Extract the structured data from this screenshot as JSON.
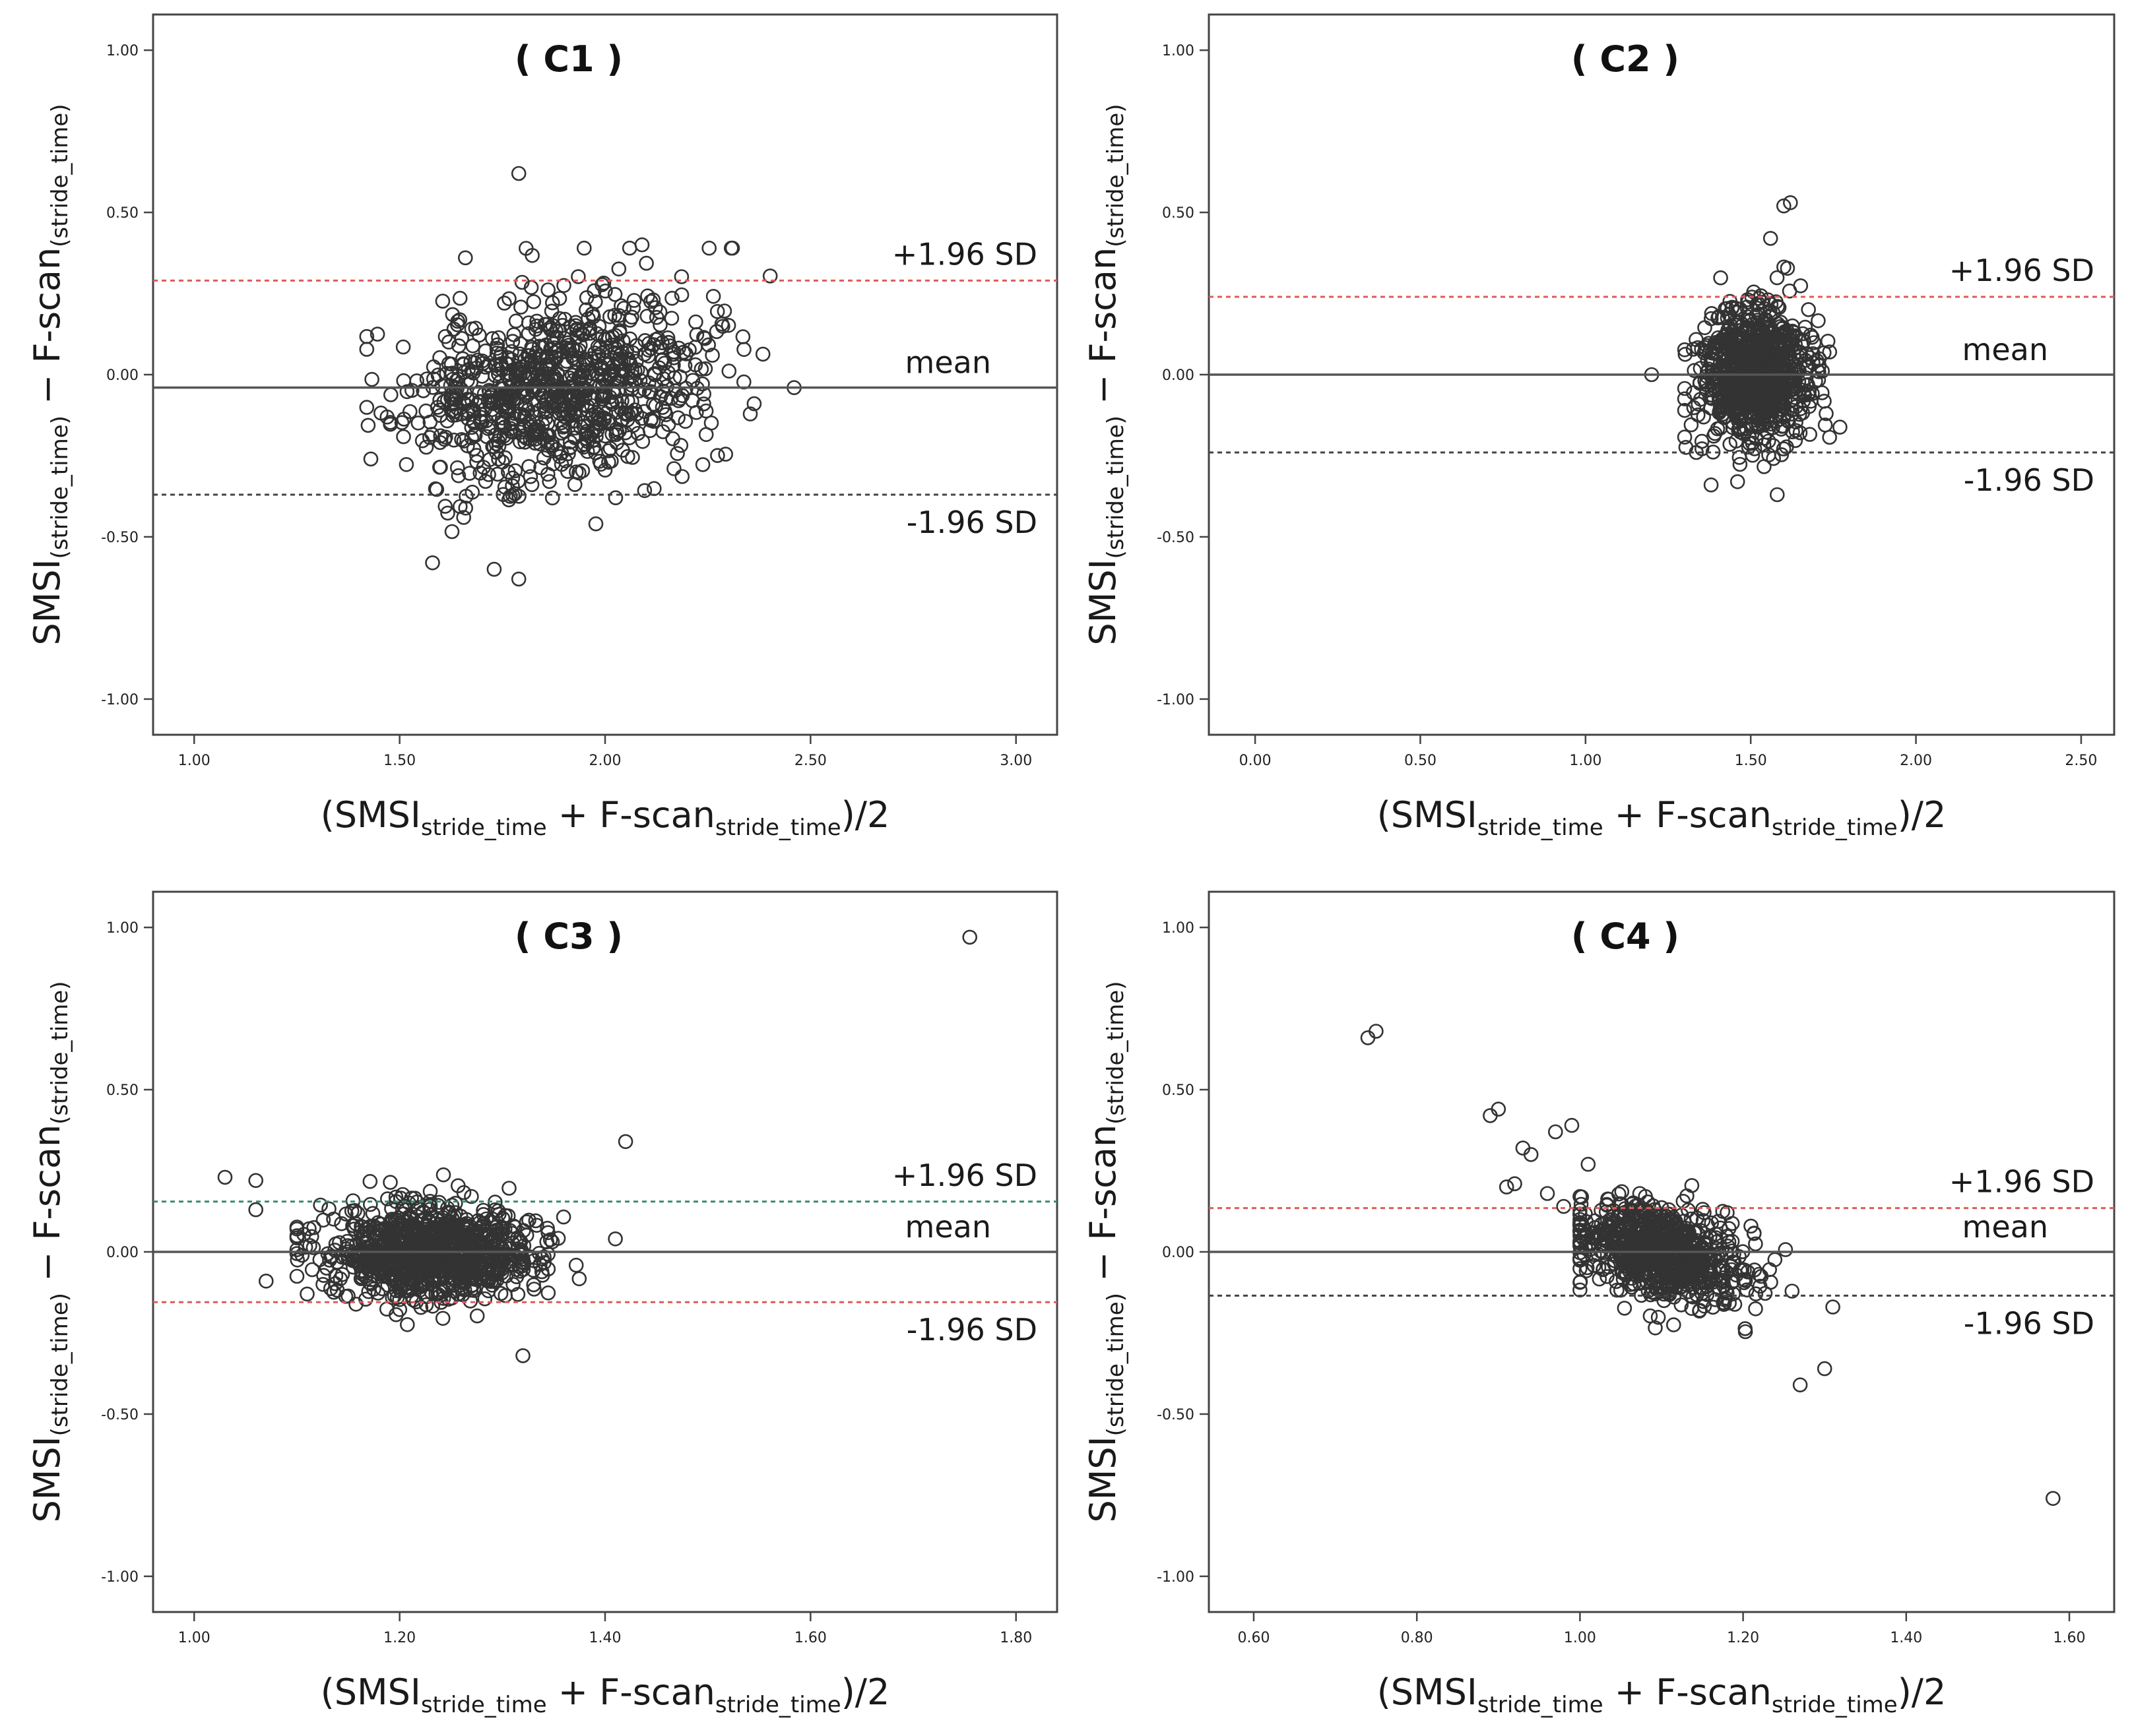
{
  "chart_data": [
    {
      "type": "scatter",
      "panel_title": "( C1 )",
      "ylabel": {
        "main": "SMSI",
        "sub1": "(stride_time)",
        "mid": " − F-scan",
        "sub2": "(stride_time)"
      },
      "xlabel": {
        "pre": "(SMSI",
        "sub1": "stride_time",
        "mid": " + F-scan",
        "sub2": "stride_time",
        "post": ")/2"
      },
      "xlim": [
        0.9,
        3.1
      ],
      "ylim": [
        -1.11,
        1.11
      ],
      "x_ticks": [
        1.0,
        1.5,
        2.0,
        2.5,
        3.0
      ],
      "x_tick_labels": [
        "1.00",
        "1.50",
        "2.00",
        "2.50",
        "3.00"
      ],
      "y_ticks": [
        1.0,
        0.5,
        0.0,
        -0.5,
        -1.0
      ],
      "y_tick_labels": [
        "1.00",
        "0.50",
        "0.00",
        "-0.50",
        "-1.00"
      ],
      "mean": -0.04,
      "upper_loa": 0.29,
      "lower_loa": -0.37,
      "upper_color": "#e05a5a",
      "lower_color": "#444444",
      "upper_label": "+1.96   SD",
      "mean_label": "mean",
      "lower_label": "-1.96   SD",
      "cloud": {
        "n": 900,
        "seed": 11,
        "x_center": 1.88,
        "x_sd": 0.18,
        "x_min": 1.42,
        "x_max": 2.48,
        "y_sd": 0.14,
        "slope": 0.18
      },
      "outliers": [
        [
          1.79,
          0.62
        ],
        [
          1.79,
          -0.63
        ],
        [
          1.66,
          0.36
        ],
        [
          2.09,
          0.4
        ],
        [
          2.31,
          0.39
        ],
        [
          2.46,
          -0.04
        ],
        [
          1.43,
          -0.26
        ],
        [
          1.58,
          -0.58
        ],
        [
          1.73,
          -0.6
        ]
      ]
    },
    {
      "type": "scatter",
      "panel_title": "( C2 )",
      "ylabel": {
        "main": "SMSI",
        "sub1": "(stride_time)",
        "mid": " − F-scan",
        "sub2": "(stride_time)"
      },
      "xlabel": {
        "pre": "(SMSI",
        "sub1": "stride_time",
        "mid": " + F-scan",
        "sub2": "stride_time",
        "post": ")/2"
      },
      "xlim": [
        -0.14,
        2.6
      ],
      "ylim": [
        -1.11,
        1.11
      ],
      "x_ticks": [
        0.0,
        0.5,
        1.0,
        1.5,
        2.0,
        2.5
      ],
      "x_tick_labels": [
        "0.00",
        "0.50",
        "1.00",
        "1.50",
        "2.00",
        "2.50"
      ],
      "y_ticks": [
        1.0,
        0.5,
        0.0,
        -0.5,
        -1.0
      ],
      "y_tick_labels": [
        "1.00",
        "0.50",
        "0.00",
        "-0.50",
        "-1.00"
      ],
      "mean": 0.0,
      "upper_loa": 0.24,
      "lower_loa": -0.24,
      "upper_color": "#e05a5a",
      "lower_color": "#444444",
      "upper_label": "+1.96   SD",
      "mean_label": "mean",
      "lower_label": "-1.96   SD",
      "cloud": {
        "n": 900,
        "seed": 23,
        "x_center": 1.51,
        "x_sd": 0.08,
        "x_min": 1.3,
        "x_max": 1.77,
        "y_sd": 0.1,
        "slope": 0
      },
      "outliers": [
        [
          1.2,
          0.0
        ],
        [
          1.6,
          0.52
        ],
        [
          1.62,
          0.53
        ],
        [
          1.56,
          0.42
        ],
        [
          1.58,
          -0.37
        ],
        [
          1.38,
          -0.34
        ],
        [
          1.46,
          -0.33
        ]
      ]
    },
    {
      "type": "scatter",
      "panel_title": "( C3 )",
      "ylabel": {
        "main": "SMSI",
        "sub1": "(stride_time)",
        "mid": " − F-scan",
        "sub2": "(stride_time)"
      },
      "xlabel": {
        "pre": "(SMSI",
        "sub1": "stride_time",
        "mid": " + F-scan",
        "sub2": "stride_time",
        "post": ")/2"
      },
      "xlim": [
        0.96,
        1.84
      ],
      "ylim": [
        -1.11,
        1.11
      ],
      "x_ticks": [
        1.0,
        1.2,
        1.4,
        1.6,
        1.8
      ],
      "x_tick_labels": [
        "1.00",
        "1.20",
        "1.40",
        "1.60",
        "1.80"
      ],
      "y_ticks": [
        1.0,
        0.5,
        0.0,
        -0.5,
        -1.0
      ],
      "y_tick_labels": [
        "1.00",
        "0.50",
        "0.00",
        "-0.50",
        "-1.00"
      ],
      "mean": 0.0,
      "upper_loa": 0.155,
      "lower_loa": -0.155,
      "upper_color": "#3a8a6a",
      "lower_color": "#e05a5a",
      "upper_label": "+1.96   SD",
      "mean_label": "mean",
      "lower_label": "-1.96   SD",
      "cloud": {
        "n": 1000,
        "seed": 37,
        "x_center": 1.23,
        "x_sd": 0.05,
        "x_min": 1.1,
        "x_max": 1.39,
        "y_sd": 0.07,
        "slope": 0
      },
      "outliers": [
        [
          1.755,
          0.97
        ],
        [
          1.42,
          0.34
        ],
        [
          1.03,
          0.23
        ],
        [
          1.06,
          0.22
        ],
        [
          1.06,
          0.13
        ],
        [
          1.07,
          -0.09
        ],
        [
          1.11,
          -0.13
        ],
        [
          1.41,
          0.04
        ],
        [
          1.32,
          -0.32
        ]
      ]
    },
    {
      "type": "scatter",
      "panel_title": "( C4 )",
      "ylabel": {
        "main": "SMSI",
        "sub1": "(stride_time)",
        "mid": " − F-scan",
        "sub2": "(stride_time)"
      },
      "xlabel": {
        "pre": "(SMSI",
        "sub1": "stride_time",
        "mid": " + F-scan",
        "sub2": "stride_time",
        "post": ")/2"
      },
      "xlim": [
        0.545,
        1.655
      ],
      "ylim": [
        -1.11,
        1.11
      ],
      "x_ticks": [
        0.6,
        0.8,
        1.0,
        1.2,
        1.4,
        1.6
      ],
      "x_tick_labels": [
        "0.60",
        "0.80",
        "1.00",
        "1.20",
        "1.40",
        "1.60"
      ],
      "y_ticks": [
        1.0,
        0.5,
        0.0,
        -0.5,
        -1.0
      ],
      "y_tick_labels": [
        "1.00",
        "0.50",
        "0.00",
        "-0.50",
        "-1.00"
      ],
      "mean": 0.0,
      "upper_loa": 0.135,
      "lower_loa": -0.135,
      "upper_color": "#e05a5a",
      "lower_color": "#444444",
      "upper_label": "+1.96   SD",
      "mean_label": "mean",
      "lower_label": "-1.96   SD",
      "cloud": {
        "n": 800,
        "seed": 53,
        "x_center": 1.1,
        "x_sd": 0.05,
        "x_min": 1.0,
        "x_max": 1.26,
        "y_sd": 0.07,
        "slope": -0.6
      },
      "outliers": [
        [
          0.74,
          0.66
        ],
        [
          0.75,
          0.68
        ],
        [
          0.89,
          0.42
        ],
        [
          0.9,
          0.44
        ],
        [
          0.97,
          0.37
        ],
        [
          0.99,
          0.39
        ],
        [
          0.93,
          0.32
        ],
        [
          0.94,
          0.3
        ],
        [
          1.01,
          0.27
        ],
        [
          0.92,
          0.21
        ],
        [
          0.91,
          0.2
        ],
        [
          0.96,
          0.18
        ],
        [
          0.98,
          0.14
        ],
        [
          1.3,
          -0.36
        ],
        [
          1.27,
          -0.41
        ],
        [
          1.31,
          -0.17
        ],
        [
          1.58,
          -0.76
        ]
      ]
    }
  ]
}
